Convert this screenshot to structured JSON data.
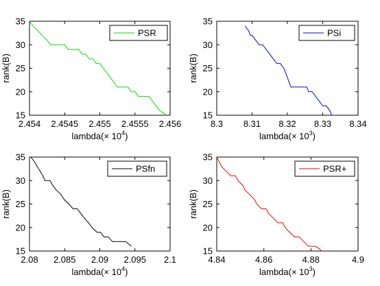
{
  "chart_data": [
    {
      "type": "line",
      "ylabel": "rank(B)",
      "xlabel": "lambda(× 10",
      "xlabel_exp": "4",
      "xlabel_close": ")",
      "xlim": [
        2.454,
        2.456
      ],
      "ylim": [
        15,
        35
      ],
      "xticks": [
        2.454,
        2.4545,
        2.455,
        2.4555,
        2.456
      ],
      "xtick_labels": [
        "2.454",
        "2.4545",
        "2.455",
        "2.4555",
        "2.456"
      ],
      "yticks": [
        15,
        20,
        25,
        30,
        35
      ],
      "ytick_labels": [
        "15",
        "20",
        "25",
        "30",
        "35"
      ],
      "legend": "top-right",
      "grid": false,
      "series": [
        {
          "name": "PSR",
          "color": "#00dd00",
          "points": [
            [
              2.454,
              35
            ],
            [
              2.45405,
              34
            ],
            [
              2.45412,
              33
            ],
            [
              2.45418,
              32
            ],
            [
              2.45425,
              31
            ],
            [
              2.4543,
              30
            ],
            [
              2.4545,
              30
            ],
            [
              2.45455,
              29
            ],
            [
              2.4547,
              29
            ],
            [
              2.45475,
              28
            ],
            [
              2.4548,
              28
            ],
            [
              2.45485,
              27
            ],
            [
              2.4549,
              27
            ],
            [
              2.45495,
              26
            ],
            [
              2.455,
              26
            ],
            [
              2.45505,
              25
            ],
            [
              2.4551,
              24
            ],
            [
              2.45515,
              23
            ],
            [
              2.4552,
              22
            ],
            [
              2.45525,
              21
            ],
            [
              2.4554,
              21
            ],
            [
              2.45545,
              20
            ],
            [
              2.4555,
              20
            ],
            [
              2.45555,
              19
            ],
            [
              2.4557,
              19
            ],
            [
              2.45575,
              18
            ],
            [
              2.4558,
              17
            ],
            [
              2.45585,
              16
            ],
            [
              2.4559,
              15.5
            ],
            [
              2.45595,
              15
            ]
          ]
        }
      ]
    },
    {
      "type": "line",
      "ylabel": "rank(B)",
      "xlabel": "lambda(× 10",
      "xlabel_exp": "3",
      "xlabel_close": ")",
      "xlim": [
        8.3,
        8.34
      ],
      "ylim": [
        15,
        35
      ],
      "xticks": [
        8.3,
        8.31,
        8.32,
        8.33,
        8.34
      ],
      "xtick_labels": [
        "8.3",
        "8.31",
        "8.32",
        "8.33",
        "8.34"
      ],
      "yticks": [
        15,
        20,
        25,
        30,
        35
      ],
      "ytick_labels": [
        "15",
        "20",
        "25",
        "30",
        "35"
      ],
      "legend": "top-right",
      "grid": false,
      "series": [
        {
          "name": "PSi",
          "color": "#0000ee",
          "points": [
            [
              8.308,
              34
            ],
            [
              8.309,
              33
            ],
            [
              8.3095,
              32
            ],
            [
              8.31,
              32
            ],
            [
              8.311,
              31
            ],
            [
              8.312,
              30
            ],
            [
              8.313,
              30
            ],
            [
              8.314,
              29
            ],
            [
              8.315,
              28
            ],
            [
              8.316,
              27
            ],
            [
              8.317,
              26
            ],
            [
              8.318,
              26
            ],
            [
              8.319,
              25
            ],
            [
              8.3195,
              24
            ],
            [
              8.32,
              23
            ],
            [
              8.3205,
              22
            ],
            [
              8.321,
              21
            ],
            [
              8.3255,
              21
            ],
            [
              8.326,
              20
            ],
            [
              8.327,
              20
            ],
            [
              8.328,
              19
            ],
            [
              8.329,
              18
            ],
            [
              8.33,
              17
            ],
            [
              8.331,
              17
            ],
            [
              8.332,
              16
            ],
            [
              8.3325,
              15
            ]
          ]
        }
      ]
    },
    {
      "type": "line",
      "ylabel": "rank(B)",
      "xlabel": "lambda(× 10",
      "xlabel_exp": "4",
      "xlabel_close": ")",
      "xlim": [
        2.08,
        2.1
      ],
      "ylim": [
        15,
        35
      ],
      "xticks": [
        2.08,
        2.085,
        2.09,
        2.095,
        2.1
      ],
      "xtick_labels": [
        "2.08",
        "2.085",
        "2.09",
        "2.095",
        "2.1"
      ],
      "yticks": [
        15,
        20,
        25,
        30,
        35
      ],
      "ytick_labels": [
        "15",
        "20",
        "25",
        "30",
        "35"
      ],
      "legend": "top-right",
      "grid": false,
      "series": [
        {
          "name": "PSfn",
          "color": "#000000",
          "points": [
            [
              2.0802,
              35
            ],
            [
              2.0807,
              34
            ],
            [
              2.0811,
              33
            ],
            [
              2.0815,
              32
            ],
            [
              2.0819,
              31
            ],
            [
              2.0822,
              30
            ],
            [
              2.0829,
              30
            ],
            [
              2.0833,
              29
            ],
            [
              2.0838,
              28
            ],
            [
              2.0845,
              27
            ],
            [
              2.0849,
              26
            ],
            [
              2.0856,
              25
            ],
            [
              2.0862,
              24
            ],
            [
              2.0868,
              24
            ],
            [
              2.0873,
              23
            ],
            [
              2.0878,
              22
            ],
            [
              2.0884,
              21
            ],
            [
              2.0889,
              20
            ],
            [
              2.0896,
              19
            ],
            [
              2.0901,
              19
            ],
            [
              2.0906,
              18
            ],
            [
              2.0912,
              18
            ],
            [
              2.0918,
              17
            ],
            [
              2.0929,
              17
            ],
            [
              2.0937,
              17
            ],
            [
              2.0945,
              16
            ]
          ]
        }
      ]
    },
    {
      "type": "line",
      "ylabel": "rank(B)",
      "xlabel": "lambda(× 10",
      "xlabel_exp": "3",
      "xlabel_close": ")",
      "xlim": [
        4.84,
        4.9
      ],
      "ylim": [
        15,
        35
      ],
      "xticks": [
        4.84,
        4.86,
        4.88,
        4.9
      ],
      "xtick_labels": [
        "4.84",
        "4.86",
        "4.88",
        "4.9"
      ],
      "yticks": [
        15,
        20,
        25,
        30,
        35
      ],
      "ytick_labels": [
        "15",
        "20",
        "25",
        "30",
        "35"
      ],
      "legend": "top-right",
      "grid": false,
      "series": [
        {
          "name": "PSR+",
          "color": "#ee0000",
          "points": [
            [
              4.84,
              35
            ],
            [
              4.842,
              33
            ],
            [
              4.844,
              32
            ],
            [
              4.846,
              31
            ],
            [
              4.848,
              31
            ],
            [
              4.849,
              30
            ],
            [
              4.851,
              29
            ],
            [
              4.852,
              28
            ],
            [
              4.854,
              27
            ],
            [
              4.856,
              26
            ],
            [
              4.857,
              25
            ],
            [
              4.859,
              24
            ],
            [
              4.861,
              24
            ],
            [
              4.862,
              23
            ],
            [
              4.864,
              22
            ],
            [
              4.866,
              21
            ],
            [
              4.868,
              21
            ],
            [
              4.869,
              20
            ],
            [
              4.871,
              19
            ],
            [
              4.873,
              18
            ],
            [
              4.875,
              18
            ],
            [
              4.877,
              17
            ],
            [
              4.879,
              16
            ],
            [
              4.882,
              16
            ],
            [
              4.8835,
              15.5
            ],
            [
              4.8845,
              15
            ]
          ]
        }
      ]
    }
  ]
}
